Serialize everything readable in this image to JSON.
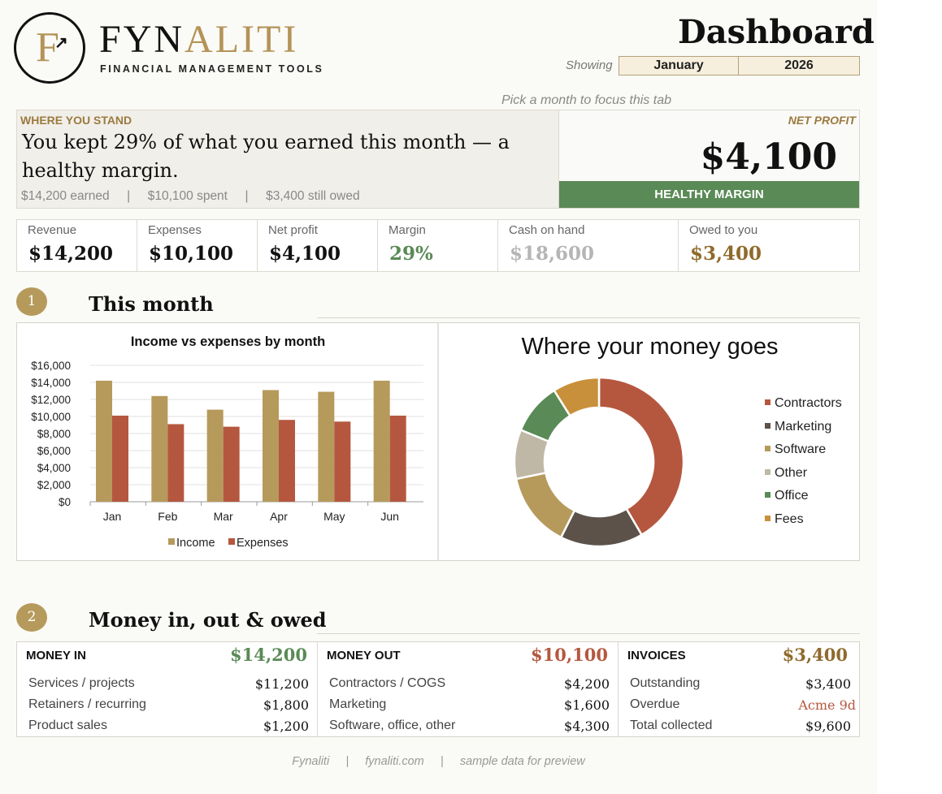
{
  "brand": {
    "name_part1": "FYN",
    "name_part2": "ALITI",
    "tagline": "FINANCIAL MANAGEMENT TOOLS",
    "logo_letter": "F"
  },
  "header": {
    "title": "Dashboard",
    "showing_label": "Showing",
    "month": "January",
    "year": "2026",
    "hint": "Pick a month to focus this tab"
  },
  "status": {
    "kicker": "WHERE YOU STAND",
    "headline": "You kept 29% of what you earned this month — a healthy margin.",
    "earned": "$14,200 earned",
    "spent": "$10,100 spent",
    "owed": "$3,400 still owed",
    "separator": "|"
  },
  "net_profit": {
    "kicker": "NET PROFIT",
    "value": "$4,100",
    "badge": "HEALTHY MARGIN",
    "badge_color": "#5a8a56"
  },
  "kpis": [
    {
      "label": "Revenue",
      "value": "$14,200",
      "color": "#111111"
    },
    {
      "label": "Expenses",
      "value": "$10,100",
      "color": "#111111"
    },
    {
      "label": "Net profit",
      "value": "$4,100",
      "color": "#111111"
    },
    {
      "label": "Margin",
      "value": "29%",
      "color": "#5a8a56"
    },
    {
      "label": "Cash on hand",
      "value": "$18,600",
      "color": "#b5b5b5"
    },
    {
      "label": "Owed to you",
      "value": "$3,400",
      "color": "#8f6a2b"
    }
  ],
  "sections": {
    "s1_num": "1",
    "s1_title": "This month",
    "s2_num": "2",
    "s2_title": "Money in, out & owed"
  },
  "chart_data": [
    {
      "type": "bar",
      "title": "Income vs expenses by month",
      "categories": [
        "Jan",
        "Feb",
        "Mar",
        "Apr",
        "May",
        "Jun"
      ],
      "series": [
        {
          "name": "Income",
          "values": [
            14200,
            12400,
            10800,
            13100,
            12900,
            14200
          ],
          "color": "#b69a5c"
        },
        {
          "name": "Expenses",
          "values": [
            10100,
            9100,
            8800,
            9600,
            9400,
            10100
          ],
          "color": "#b5573f"
        }
      ],
      "ylim": [
        0,
        16000
      ],
      "yticks": [
        "$0",
        "$2,000",
        "$4,000",
        "$6,000",
        "$8,000",
        "$10,000",
        "$12,000",
        "$14,000",
        "$16,000"
      ],
      "grid": true,
      "legend": "bottom"
    },
    {
      "type": "pie",
      "title": "Where your money goes",
      "categories": [
        "Contractors",
        "Marketing",
        "Software",
        "Other",
        "Office",
        "Fees"
      ],
      "values": [
        4200,
        1600,
        1450,
        950,
        1000,
        900
      ],
      "colors": [
        "#b5573f",
        "#5c524a",
        "#b69a5c",
        "#c0b8a6",
        "#5a8a56",
        "#c8903a"
      ],
      "donut": true,
      "legend": "right"
    }
  ],
  "money": {
    "in": {
      "head": "MONEY IN",
      "total": "$14,200",
      "color": "#5a8a56",
      "rows": [
        {
          "k": "Services / projects",
          "v": "$11,200"
        },
        {
          "k": "Retainers / recurring",
          "v": "$1,800"
        },
        {
          "k": "Product sales",
          "v": "$1,200"
        }
      ]
    },
    "out": {
      "head": "MONEY OUT",
      "total": "$10,100",
      "color": "#b5573f",
      "rows": [
        {
          "k": "Contractors / COGS",
          "v": "$4,200"
        },
        {
          "k": "Marketing",
          "v": "$1,600"
        },
        {
          "k": "Software, office, other",
          "v": "$4,300"
        }
      ]
    },
    "invoices": {
      "head": "INVOICES",
      "total": "$3,400",
      "color": "#8f6a2b",
      "rows": [
        {
          "k": "Outstanding",
          "v": "$3,400"
        },
        {
          "k": "Overdue",
          "v": "Acme 9d"
        },
        {
          "k": "Total collected",
          "v": "$9,600"
        }
      ]
    }
  },
  "footer": {
    "brand": "Fynaliti",
    "site": "fynaliti.com",
    "note": "sample data for preview"
  }
}
